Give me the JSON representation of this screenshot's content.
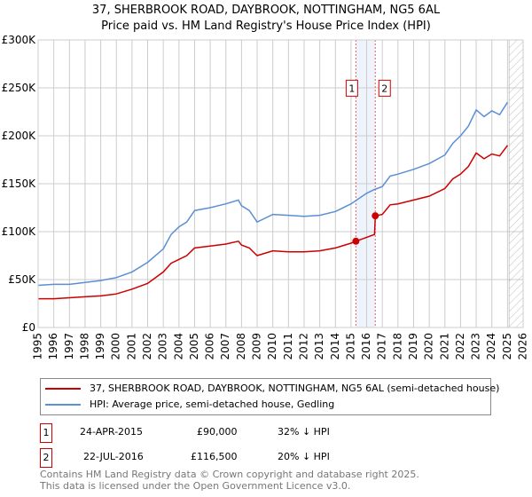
{
  "chart_data": {
    "type": "line",
    "title": "37, SHERBROOK ROAD, DAYBROOK, NOTTINGHAM, NG5 6AL",
    "subtitle": "Price paid vs. HM Land Registry's House Price Index (HPI)",
    "xlim": [
      1995,
      2026
    ],
    "ylim": [
      0,
      300000
    ],
    "y_ticks": [
      {
        "v": 0,
        "label": "£0"
      },
      {
        "v": 50000,
        "label": "£50K"
      },
      {
        "v": 100000,
        "label": "£100K"
      },
      {
        "v": 150000,
        "label": "£150K"
      },
      {
        "v": 200000,
        "label": "£200K"
      },
      {
        "v": 250000,
        "label": "£250K"
      },
      {
        "v": 300000,
        "label": "£300K"
      }
    ],
    "x_ticks": [
      "1995",
      "1996",
      "1997",
      "1998",
      "1999",
      "2000",
      "2001",
      "2002",
      "2003",
      "2004",
      "2005",
      "2006",
      "2007",
      "2008",
      "2009",
      "2010",
      "2011",
      "2012",
      "2013",
      "2014",
      "2015",
      "2016",
      "2017",
      "2018",
      "2019",
      "2020",
      "2021",
      "2022",
      "2023",
      "2024",
      "2025",
      "2026"
    ],
    "grid": true,
    "series": [
      {
        "name": "37, SHERBROOK ROAD, DAYBROOK, NOTTINGHAM, NG5 6AL (semi-detached house)",
        "color": "#cc0000",
        "x": [
          1995,
          1996,
          1997,
          1998,
          1999,
          2000,
          2001,
          2002,
          2003,
          2003.5,
          2004,
          2004.5,
          2005,
          2006,
          2007,
          2007.8,
          2008,
          2008.5,
          2009,
          2010,
          2011,
          2012,
          2013,
          2014,
          2015,
          2015.31,
          2016.5,
          2016.55,
          2017,
          2017.5,
          2018,
          2019,
          2020,
          2021,
          2021.5,
          2022,
          2022.5,
          2023,
          2023.5,
          2024,
          2024.5,
          2025
        ],
        "y": [
          30000,
          30000,
          31000,
          32000,
          33000,
          35000,
          40000,
          46000,
          58000,
          67000,
          71000,
          75000,
          83000,
          85000,
          87000,
          90000,
          86000,
          83000,
          75000,
          80000,
          79000,
          79000,
          80000,
          83000,
          88000,
          90000,
          97000,
          116500,
          118000,
          128000,
          129000,
          133000,
          137000,
          145000,
          155000,
          160000,
          168000,
          182000,
          176000,
          181000,
          179000,
          190000
        ]
      },
      {
        "name": "HPI: Average price, semi-detached house, Gedling",
        "color": "#5b8fd4",
        "x": [
          1995,
          1996,
          1997,
          1998,
          1999,
          2000,
          2001,
          2002,
          2003,
          2003.5,
          2004,
          2004.5,
          2005,
          2006,
          2007,
          2007.8,
          2008,
          2008.5,
          2009,
          2010,
          2011,
          2012,
          2013,
          2014,
          2015,
          2016,
          2016.5,
          2017,
          2017.5,
          2018,
          2019,
          2020,
          2021,
          2021.5,
          2022,
          2022.5,
          2023,
          2023.5,
          2024,
          2024.5,
          2025
        ],
        "y": [
          44000,
          45000,
          45000,
          47000,
          49000,
          52000,
          58000,
          68000,
          82000,
          97000,
          105000,
          110000,
          122000,
          125000,
          129000,
          133000,
          127000,
          122000,
          110000,
          118000,
          117000,
          116000,
          117000,
          121000,
          129000,
          140000,
          144000,
          147000,
          158000,
          160000,
          165000,
          171000,
          180000,
          192000,
          200000,
          210000,
          227000,
          220000,
          226000,
          222000,
          235000
        ]
      }
    ],
    "sales": [
      {
        "id": "1",
        "x": 2015.31,
        "y": 90000
      },
      {
        "id": "2",
        "x": 2016.55,
        "y": 116500
      }
    ],
    "forecast_hatch_from": 2025.1
  },
  "legend": {
    "property": "37, SHERBROOK ROAD, DAYBROOK, NOTTINGHAM, NG5 6AL (semi-detached house)",
    "hpi": "HPI: Average price, semi-detached house, Gedling"
  },
  "transactions": [
    {
      "id": "1",
      "date": "24-APR-2015",
      "price": "£90,000",
      "hpi": "32% ↓ HPI"
    },
    {
      "id": "2",
      "date": "22-JUL-2016",
      "price": "£116,500",
      "hpi": "20% ↓ HPI"
    }
  ],
  "footer": {
    "line1": "Contains HM Land Registry data © Crown copyright and database right 2025.",
    "line2": "This data is licensed under the Open Government Licence v3.0."
  }
}
